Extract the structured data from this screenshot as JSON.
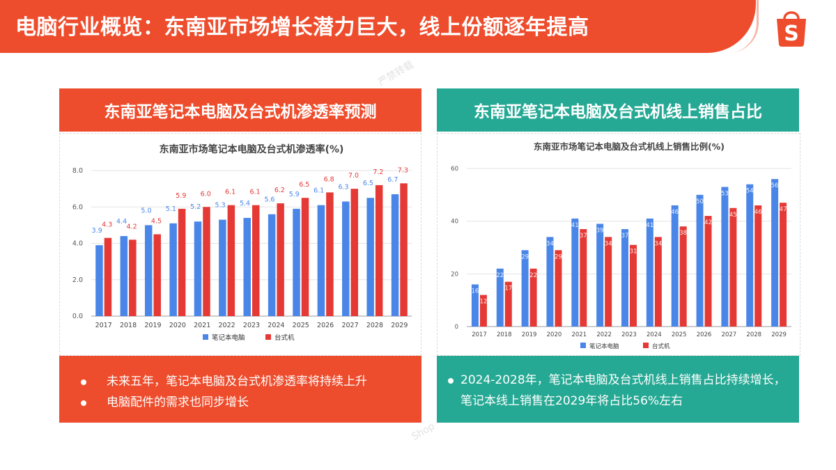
{
  "header": {
    "title": "电脑行业概览：东南亚市场增长潜力巨大，线上份额逐年提高"
  },
  "logo": {
    "icon": "shopee-bag-icon",
    "letter": "S"
  },
  "watermarks": [
    "严禁转载",
    "Shop"
  ],
  "colors": {
    "brand": "#ee4d2d",
    "teal": "#26a994",
    "laptop": "#4a86e8",
    "desktop": "#e53935"
  },
  "left_panel": {
    "title": "东南亚笔记本电脑及台式机渗透率预测",
    "bullets": [
      "未来五年，笔记本电脑及台式机渗透率将持续上升",
      "电脑配件的需求也同步增长"
    ]
  },
  "right_panel": {
    "title": "东南亚笔记本电脑及台式机线上销售占比",
    "bullets": [
      "2024-2028年，笔记本电脑及台式机线上销售占比持续增长，笔记本线上销售在2029年将占比56%左右"
    ]
  },
  "chart_data": [
    {
      "type": "bar",
      "title": "东南亚市场笔记本电脑及台式机渗透率(%)",
      "categories": [
        "2017",
        "2018",
        "2019",
        "2020",
        "2021",
        "2022",
        "2023",
        "2024",
        "2025",
        "2026",
        "2027",
        "2028",
        "2029"
      ],
      "series": [
        {
          "name": "笔记本电脑",
          "values": [
            3.9,
            4.4,
            5.0,
            5.1,
            5.2,
            5.3,
            5.4,
            5.6,
            5.9,
            6.1,
            6.3,
            6.5,
            6.7
          ],
          "labels": [
            "3.9",
            "4.4",
            "5.0",
            "5.1",
            "5.2",
            "5.3",
            "5.4",
            "5.6",
            "5.9",
            "6.1",
            "6.3",
            "6.5",
            "6.7"
          ]
        },
        {
          "name": "台式机",
          "values": [
            4.3,
            4.2,
            4.5,
            5.9,
            6.0,
            6.1,
            6.1,
            6.2,
            6.5,
            6.8,
            7.0,
            7.2,
            7.3
          ],
          "labels": [
            "4.3",
            "4.2",
            "4.5",
            "5.9",
            "6.0",
            "6.1",
            "6.1",
            "6.2",
            "6.5",
            "6.8",
            "7.0",
            "7.2",
            "7.3"
          ]
        }
      ],
      "ylim": [
        0,
        8
      ],
      "yticks": [
        "0.0",
        "2.0",
        "4.0",
        "6.0",
        "8.0"
      ],
      "grid": true,
      "legend": "bottom"
    },
    {
      "type": "bar",
      "title": "东南亚市场笔记本电脑及台式机线上销售比例(%)",
      "categories": [
        "2017",
        "2018",
        "2019",
        "2020",
        "2021",
        "2022",
        "2023",
        "2024",
        "2025",
        "2026",
        "2027",
        "2028",
        "2029"
      ],
      "series": [
        {
          "name": "笔记本电脑",
          "values": [
            16,
            22,
            29,
            34,
            41,
            39,
            37,
            41,
            46,
            50,
            53,
            54,
            56
          ],
          "labels": [
            "16",
            "22",
            "29",
            "34",
            "41",
            "39",
            "37",
            "41",
            "46",
            "50",
            "53",
            "54",
            "56"
          ]
        },
        {
          "name": "台式机",
          "values": [
            12,
            17,
            22,
            29,
            37,
            34,
            31,
            34,
            38,
            42,
            45,
            46,
            47
          ],
          "labels": [
            "12",
            "17",
            "22",
            "29",
            "37",
            "34",
            "31",
            "34",
            "38",
            "42",
            "45",
            "46",
            "47"
          ]
        }
      ],
      "ylim": [
        0,
        60
      ],
      "yticks": [
        "0",
        "20",
        "40",
        "60"
      ],
      "grid": true,
      "legend": "bottom"
    }
  ]
}
